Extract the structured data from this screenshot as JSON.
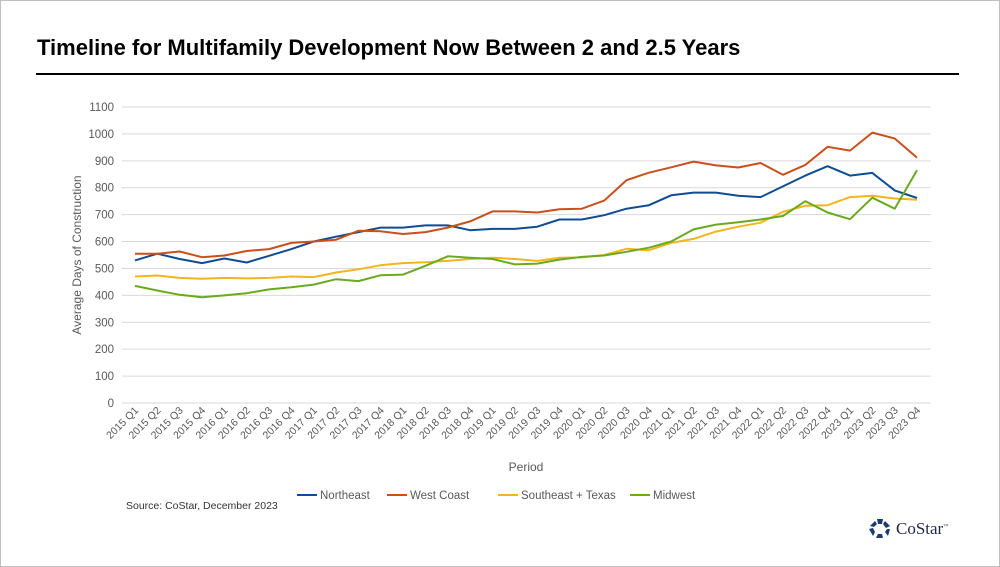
{
  "title": "Timeline for Multifamily Development Now Between 2 and 2.5 Years",
  "source": "Source: CoStar, December 2023",
  "logo": {
    "text": "CoStar",
    "trademark": "™",
    "icon": "costar-star-logo-icon",
    "color": "#1f3a6e"
  },
  "chart_data": {
    "type": "line",
    "title": "",
    "xlabel": "Period",
    "ylabel": "Average Days of Construction",
    "ylim": [
      0,
      1100
    ],
    "yticks": [
      0,
      100,
      200,
      300,
      400,
      500,
      600,
      700,
      800,
      900,
      1000,
      1100
    ],
    "grid": true,
    "legend_placement": "bottom",
    "categories": [
      "2015 Q1",
      "2015 Q2",
      "2015 Q3",
      "2015 Q4",
      "2016 Q1",
      "2016 Q2",
      "2016 Q3",
      "2016 Q4",
      "2017 Q1",
      "2017 Q2",
      "2017 Q3",
      "2017 Q4",
      "2018 Q1",
      "2018 Q2",
      "2018 Q3",
      "2018 Q4",
      "2019 Q1",
      "2019 Q2",
      "2019 Q3",
      "2019 Q4",
      "2020 Q1",
      "2020 Q2",
      "2020 Q3",
      "2020 Q4",
      "2021 Q1",
      "2021 Q2",
      "2021 Q3",
      "2021 Q4",
      "2022 Q1",
      "2022 Q2",
      "2022 Q3",
      "2022 Q4",
      "2023 Q1",
      "2023 Q2",
      "2023 Q3",
      "2023 Q4"
    ],
    "series": [
      {
        "name": "Northeast",
        "color": "#0f4c92",
        "values": [
          530,
          555,
          535,
          520,
          537,
          522,
          547,
          572,
          600,
          618,
          635,
          652,
          652,
          660,
          660,
          642,
          647,
          647,
          655,
          682,
          682,
          698,
          722,
          735,
          772,
          782,
          782,
          770,
          765,
          805,
          845,
          880,
          845,
          855,
          790,
          762
        ]
      },
      {
        "name": "West Coast",
        "color": "#c9501c",
        "values": [
          555,
          555,
          563,
          542,
          548,
          565,
          572,
          595,
          600,
          607,
          640,
          638,
          628,
          635,
          652,
          675,
          712,
          712,
          708,
          720,
          722,
          752,
          828,
          856,
          876,
          897,
          883,
          875,
          892,
          848,
          885,
          952,
          938,
          1005,
          983,
          912
        ]
      },
      {
        "name": "Southeast + Texas",
        "color": "#f2b61c",
        "values": [
          470,
          474,
          465,
          462,
          465,
          463,
          465,
          470,
          468,
          485,
          497,
          512,
          520,
          523,
          528,
          535,
          540,
          535,
          528,
          540,
          541,
          550,
          573,
          568,
          595,
          610,
          637,
          655,
          670,
          710,
          733,
          735,
          765,
          770,
          760,
          755
        ]
      },
      {
        "name": "Midwest",
        "color": "#6aaa1e",
        "values": [
          435,
          418,
          402,
          393,
          400,
          408,
          422,
          430,
          440,
          460,
          453,
          475,
          477,
          510,
          545,
          540,
          535,
          515,
          518,
          533,
          543,
          548,
          562,
          577,
          600,
          645,
          663,
          672,
          682,
          695,
          750,
          708,
          683,
          763,
          722,
          865
        ]
      }
    ]
  }
}
